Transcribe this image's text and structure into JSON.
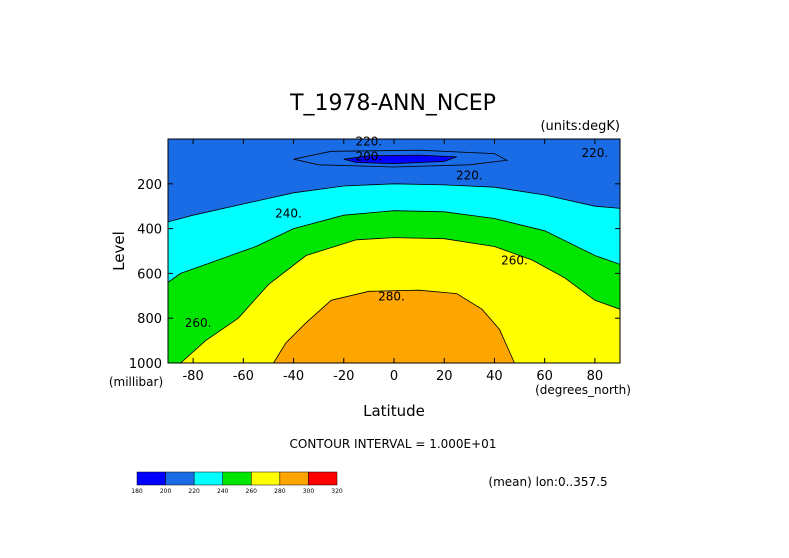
{
  "chart_data": {
    "type": "contour",
    "title": "T_1978-ANN_NCEP",
    "units_label": "(units:degK)",
    "xlabel": "Latitude",
    "ylabel": "Level",
    "x_units": "(degrees_north)",
    "y_units": "(millibar)",
    "xlim": [
      -90,
      90
    ],
    "ylim": [
      1000,
      0
    ],
    "x_ticks": [
      -80,
      -60,
      -40,
      -20,
      0,
      20,
      40,
      60,
      80
    ],
    "x_tick_labels": [
      "-80",
      "-60",
      "-40",
      "-20",
      "0",
      "20",
      "40",
      "60",
      "80"
    ],
    "y_ticks": [
      200,
      400,
      600,
      800,
      1000
    ],
    "y_tick_labels": [
      "200",
      "400",
      "600",
      "800",
      "1000"
    ],
    "contour_interval_text": "CONTOUR INTERVAL = 1.000E+01",
    "mean_text": "(mean) lon:0..357.5",
    "contour_levels": [
      {
        "name": "level-200",
        "value": 200,
        "label": "200.",
        "color": "#0000ff",
        "points": [
          [
            -20,
            90
          ],
          [
            -10,
            75
          ],
          [
            10,
            72
          ],
          [
            25,
            80
          ],
          [
            20,
            100
          ],
          [
            0,
            110
          ],
          [
            -15,
            105
          ]
        ]
      },
      {
        "name": "level-210",
        "value": 210,
        "label": "",
        "color": "#1a6be6",
        "points": [
          [
            -40,
            90
          ],
          [
            -25,
            55
          ],
          [
            10,
            50
          ],
          [
            40,
            65
          ],
          [
            45,
            95
          ],
          [
            30,
            115
          ],
          [
            0,
            125
          ],
          [
            -30,
            115
          ]
        ]
      },
      {
        "name": "level-220",
        "value": 220,
        "label": "220.",
        "color": "#00ffff",
        "points": [
          [
            -90,
            370
          ],
          [
            -80,
            340
          ],
          [
            -60,
            290
          ],
          [
            -40,
            240
          ],
          [
            -20,
            210
          ],
          [
            0,
            200
          ],
          [
            20,
            205
          ],
          [
            40,
            215
          ],
          [
            60,
            250
          ],
          [
            80,
            300
          ],
          [
            90,
            310
          ],
          [
            90,
            0
          ],
          [
            -90,
            0
          ]
        ]
      },
      {
        "name": "level-240",
        "value": 240,
        "label": "240.",
        "color": "#00e600",
        "points": [
          [
            -90,
            640
          ],
          [
            -85,
            600
          ],
          [
            -70,
            540
          ],
          [
            -55,
            480
          ],
          [
            -40,
            400
          ],
          [
            -20,
            340
          ],
          [
            0,
            320
          ],
          [
            20,
            325
          ],
          [
            40,
            355
          ],
          [
            60,
            410
          ],
          [
            80,
            520
          ],
          [
            90,
            560
          ]
        ]
      },
      {
        "name": "level-260",
        "value": 260,
        "label": "260.",
        "color": "#ffff00",
        "points": [
          [
            -85,
            1000
          ],
          [
            -75,
            900
          ],
          [
            -62,
            800
          ],
          [
            -50,
            650
          ],
          [
            -35,
            520
          ],
          [
            -15,
            450
          ],
          [
            0,
            440
          ],
          [
            20,
            445
          ],
          [
            40,
            480
          ],
          [
            55,
            540
          ],
          [
            68,
            620
          ],
          [
            80,
            720
          ],
          [
            90,
            760
          ]
        ]
      },
      {
        "name": "level-280",
        "value": 280,
        "label": "280.",
        "color": "#ffa500",
        "points": [
          [
            -48,
            1000
          ],
          [
            -43,
            910
          ],
          [
            -35,
            820
          ],
          [
            -25,
            720
          ],
          [
            -10,
            680
          ],
          [
            10,
            675
          ],
          [
            25,
            690
          ],
          [
            35,
            760
          ],
          [
            42,
            850
          ],
          [
            48,
            1000
          ]
        ]
      }
    ],
    "region_labels": [
      {
        "text": "220.",
        "lat": -10,
        "level": 30
      },
      {
        "text": "200.",
        "lat": -10,
        "level": 95
      },
      {
        "text": "220.",
        "lat": 80,
        "level": 80
      },
      {
        "text": "220.",
        "lat": 30,
        "level": 180
      },
      {
        "text": "240.",
        "lat": -42,
        "level": 350
      },
      {
        "text": "260.",
        "lat": 48,
        "level": 560
      },
      {
        "text": "280.",
        "lat": -1,
        "level": 720
      },
      {
        "text": "260.",
        "lat": -78,
        "level": 840
      }
    ],
    "colorbar": {
      "colors": [
        "#0000ff",
        "#1a6be6",
        "#00ffff",
        "#00e600",
        "#ffff00",
        "#ffa500",
        "#ff0000"
      ],
      "labels": [
        "180",
        "200",
        "220",
        "240",
        "260",
        "280",
        "300",
        "320"
      ]
    }
  }
}
